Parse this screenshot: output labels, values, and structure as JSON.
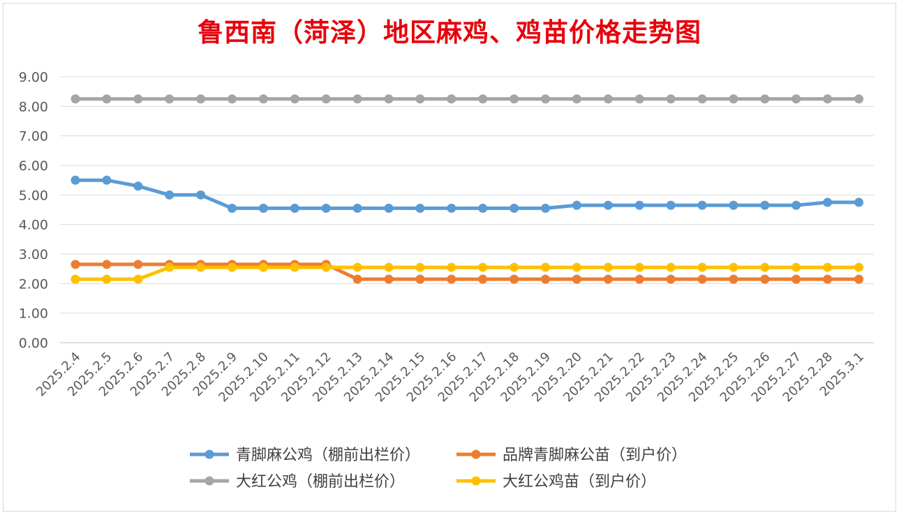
{
  "chart_data": {
    "type": "line",
    "title": "鲁西南（菏泽）地区麻鸡、鸡苗价格走势图",
    "xlabel": "",
    "ylabel": "",
    "ylim": [
      0,
      9
    ],
    "y_ticks": [
      "0.00",
      "1.00",
      "2.00",
      "3.00",
      "4.00",
      "5.00",
      "6.00",
      "7.00",
      "8.00",
      "9.00"
    ],
    "grid": true,
    "legend_position": "bottom",
    "categories": [
      "2025.2.4",
      "2025.2.5",
      "2025.2.6",
      "2025.2.7",
      "2025.2.8",
      "2025.2.9",
      "2025.2.10",
      "2025.2.11",
      "2025.2.12",
      "2025.2.13",
      "2025.2.14",
      "2025.2.15",
      "2025.2.16",
      "2025.2.17",
      "2025.2.18",
      "2025.2.19",
      "2025.2.20",
      "2025.2.21",
      "2025.2.22",
      "2025.2.23",
      "2025.2.24",
      "2025.2.25",
      "2025.2.26",
      "2025.2.27",
      "2025.2.28",
      "2025.3.1"
    ],
    "series": [
      {
        "name": "青脚麻公鸡（棚前出栏价）",
        "color": "#5b9bd5",
        "values": [
          5.5,
          5.5,
          5.3,
          5.0,
          5.0,
          4.55,
          4.55,
          4.55,
          4.55,
          4.55,
          4.55,
          4.55,
          4.55,
          4.55,
          4.55,
          4.55,
          4.65,
          4.65,
          4.65,
          4.65,
          4.65,
          4.65,
          4.65,
          4.65,
          4.75,
          4.75
        ]
      },
      {
        "name": "品牌青脚麻公苗（到户价）",
        "color": "#ed7d31",
        "values": [
          2.65,
          2.65,
          2.65,
          2.65,
          2.65,
          2.65,
          2.65,
          2.65,
          2.65,
          2.15,
          2.15,
          2.15,
          2.15,
          2.15,
          2.15,
          2.15,
          2.15,
          2.15,
          2.15,
          2.15,
          2.15,
          2.15,
          2.15,
          2.15,
          2.15,
          2.15
        ]
      },
      {
        "name": "大红公鸡（棚前出栏价）",
        "color": "#a5a5a5",
        "values": [
          8.25,
          8.25,
          8.25,
          8.25,
          8.25,
          8.25,
          8.25,
          8.25,
          8.25,
          8.25,
          8.25,
          8.25,
          8.25,
          8.25,
          8.25,
          8.25,
          8.25,
          8.25,
          8.25,
          8.25,
          8.25,
          8.25,
          8.25,
          8.25,
          8.25,
          8.25
        ]
      },
      {
        "name": "大红公鸡苗（到户价）",
        "color": "#ffc000",
        "values": [
          2.15,
          2.15,
          2.15,
          2.55,
          2.55,
          2.55,
          2.55,
          2.55,
          2.55,
          2.55,
          2.55,
          2.55,
          2.55,
          2.55,
          2.55,
          2.55,
          2.55,
          2.55,
          2.55,
          2.55,
          2.55,
          2.55,
          2.55,
          2.55,
          2.55,
          2.55
        ]
      }
    ]
  }
}
